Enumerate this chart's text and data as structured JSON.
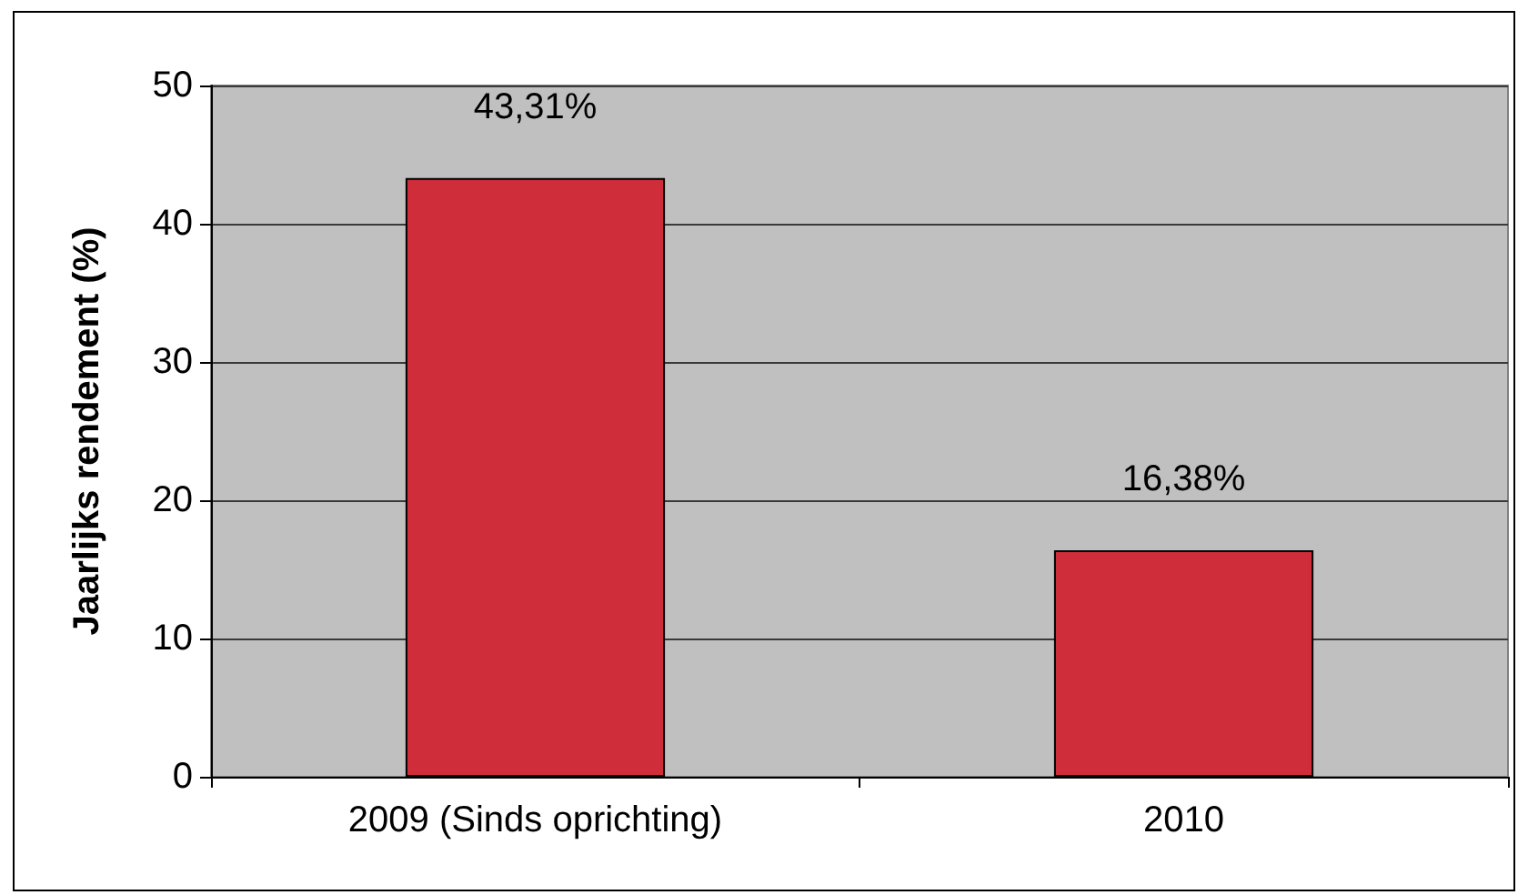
{
  "chart_data": {
    "type": "bar",
    "ylabel": "Jaarlijks rendement (%)",
    "categories": [
      "2009 (Sinds oprichting)",
      "2010"
    ],
    "values": [
      43.31,
      16.38
    ],
    "value_labels": [
      "43,31%",
      "16,38%"
    ],
    "color": "#cf2d3a",
    "ylim": [
      0,
      50
    ],
    "yticks": [
      0,
      10,
      20,
      30,
      40,
      50
    ],
    "grid": "y"
  }
}
